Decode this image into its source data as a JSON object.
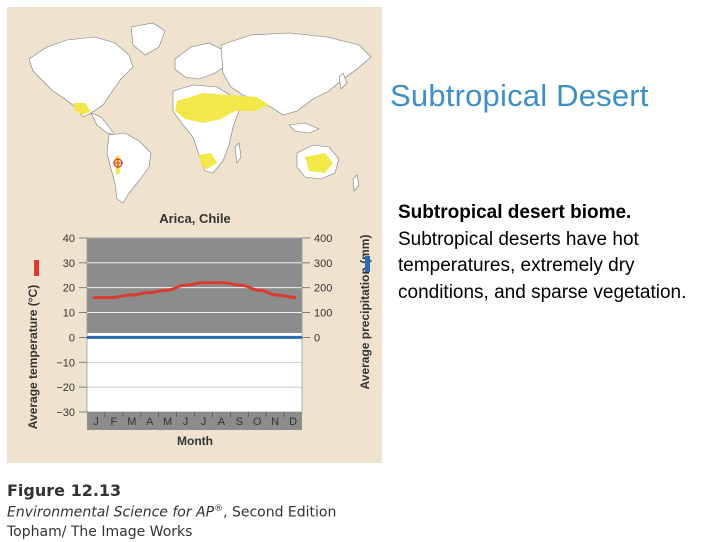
{
  "slide": {
    "title": "Subtropical Desert",
    "body_bold": "Subtropical desert biome.",
    "body_rest": "Subtropical deserts have hot temperatures, extremely dry conditions, and sparse vegetation."
  },
  "caption": {
    "figure": "Figure 12.13",
    "source_italic": "Environmental Science for AP",
    "source_sup": "®",
    "source_rest": ", Second Edition",
    "credit": "Topham/ The Image Works"
  },
  "colors": {
    "panel": "#efe3cf",
    "desert": "#f3e84a",
    "title": "#3f8fc7",
    "temperature": "#d93b2e",
    "precipitation": "#2a6bb4"
  },
  "chart_data": {
    "type": "line",
    "title": "Arica, Chile",
    "xlabel": "Month",
    "ylabel_left": "Average temperature (°C)",
    "ylabel_right": "Average precipitation (mm)",
    "categories": [
      "J",
      "F",
      "M",
      "A",
      "M",
      "J",
      "J",
      "A",
      "S",
      "O",
      "N",
      "D"
    ],
    "left_ticks": [
      "40",
      "30",
      "20",
      "10",
      "0",
      "−10",
      "−20",
      "−30"
    ],
    "right_ticks": [
      "400",
      "300",
      "200",
      "100",
      "0"
    ],
    "left_range": [
      -30,
      40
    ],
    "right_range": [
      0,
      400
    ],
    "series": [
      {
        "axis": "left",
        "color": "#d93b2e",
        "values": [
          16,
          16,
          17,
          18,
          19,
          21,
          22,
          22,
          21,
          19,
          17,
          16
        ]
      },
      {
        "axis": "right",
        "color": "#2a6bb4",
        "values": [
          0,
          0,
          0,
          0,
          0,
          0,
          0,
          0,
          0,
          0,
          0,
          0
        ]
      }
    ],
    "grid": true
  }
}
